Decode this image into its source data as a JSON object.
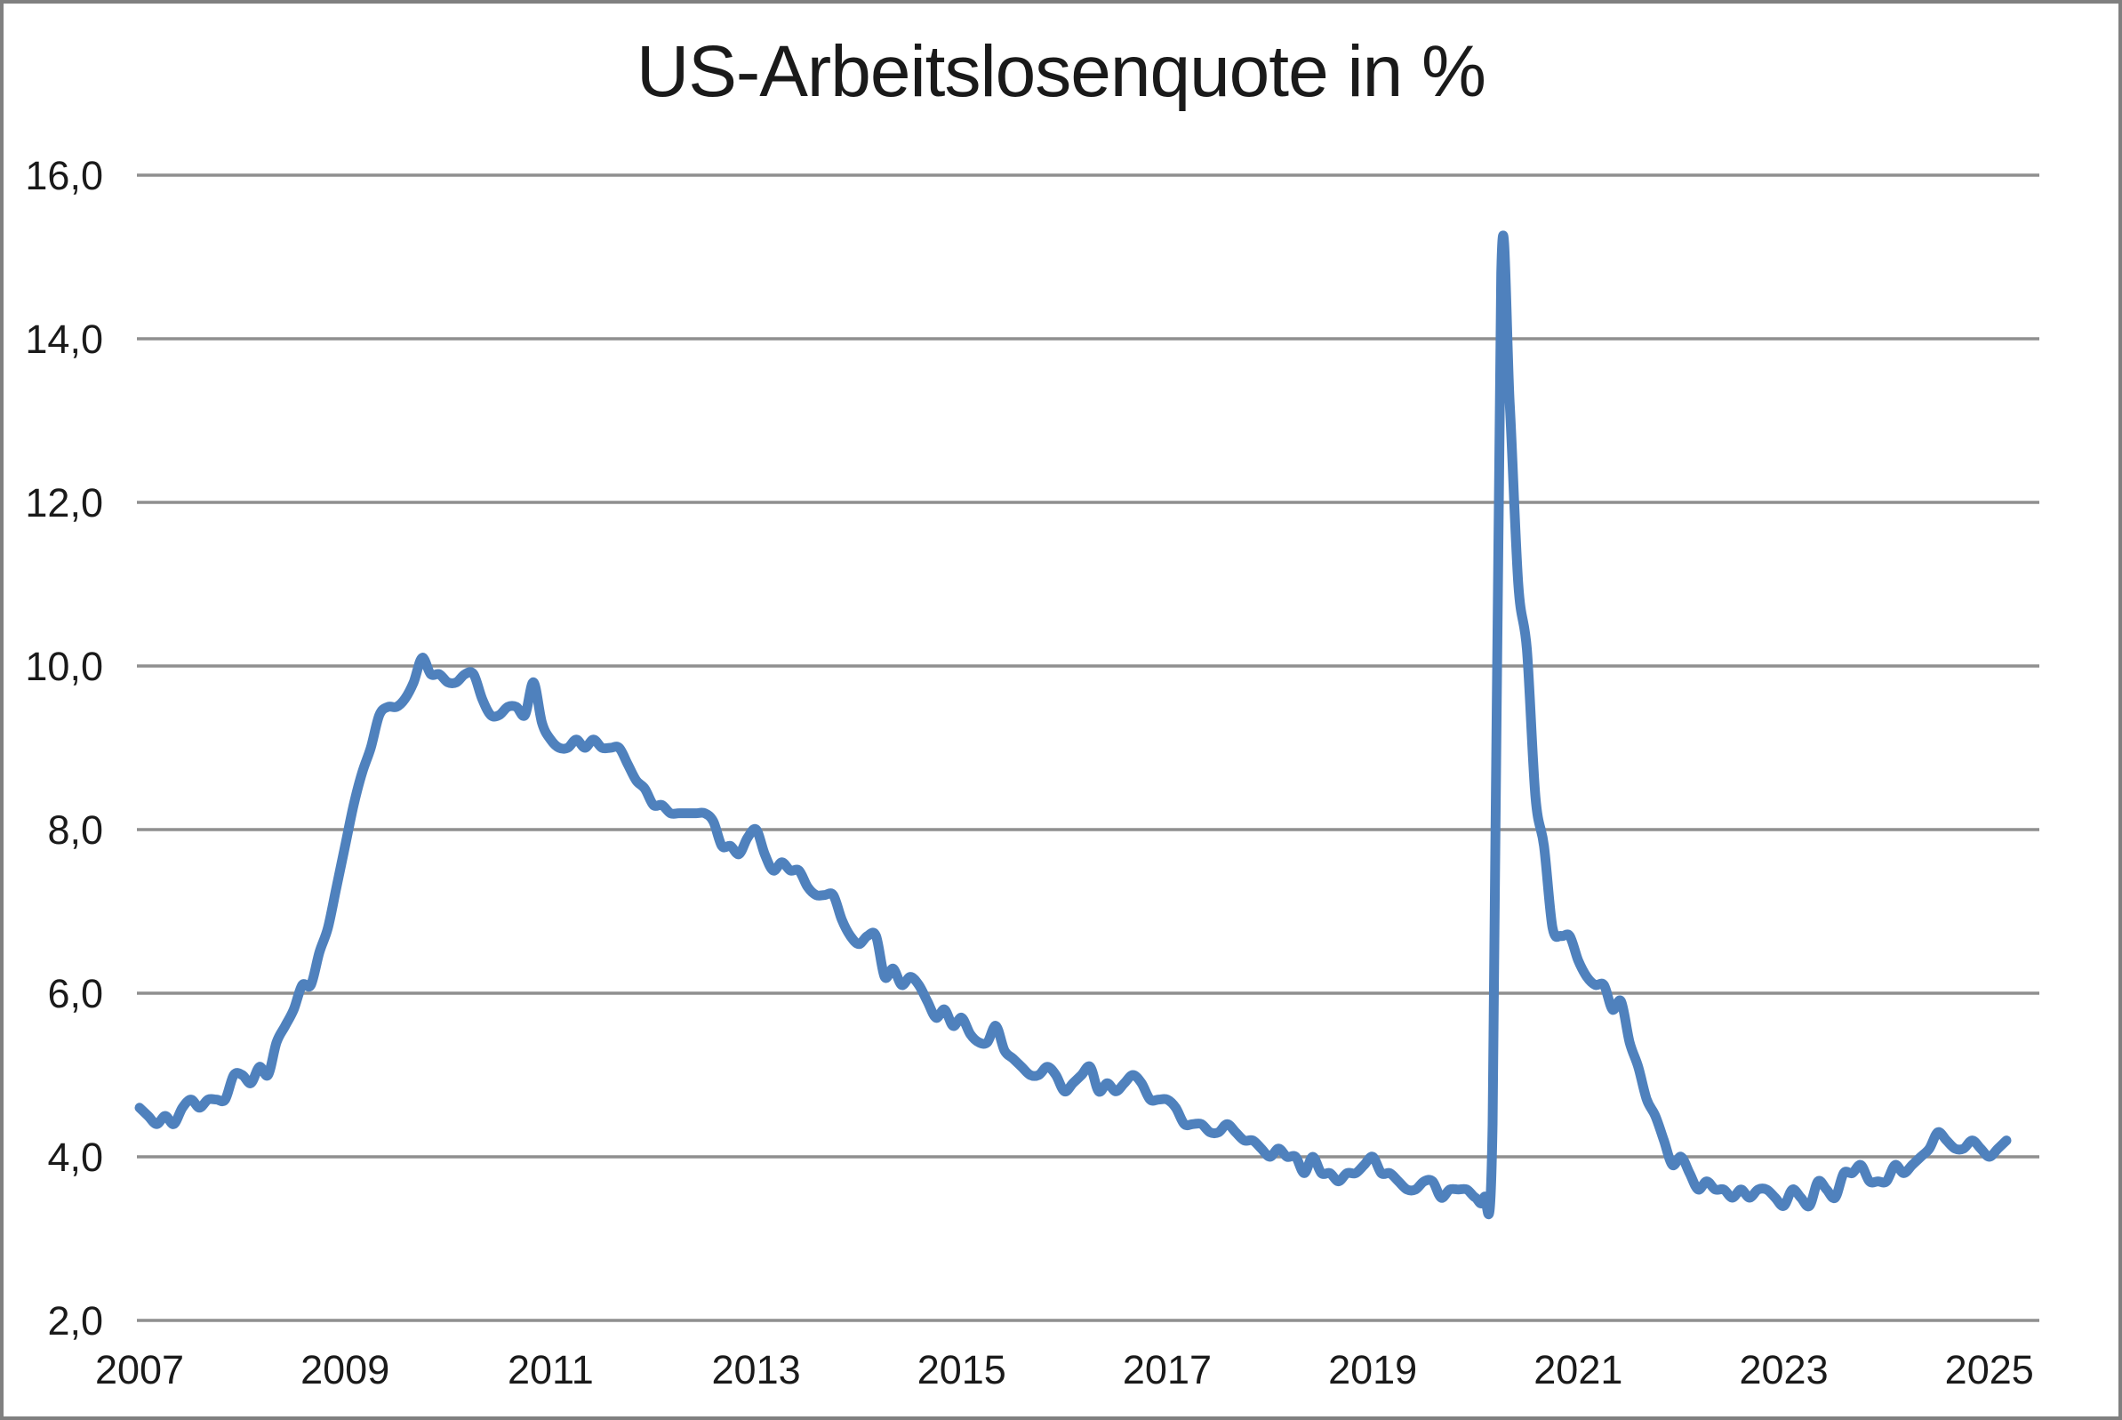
{
  "page": {
    "background_color": "#ffffff",
    "frame_color": "#808080"
  },
  "chart_data": {
    "type": "line",
    "title": "US-Arbeitslosenquote in %",
    "unit": "%",
    "frequency": "monthly",
    "x_start": "2007-01",
    "x_end": "2025-03",
    "x_tick_years": [
      2007,
      2009,
      2011,
      2013,
      2015,
      2017,
      2019,
      2021,
      2023,
      2025
    ],
    "x_tick_labels": [
      "2007",
      "2009",
      "2011",
      "2013",
      "2015",
      "2017",
      "2019",
      "2021",
      "2023",
      "2025"
    ],
    "y_ticks": [
      2,
      4,
      6,
      8,
      10,
      12,
      14,
      16
    ],
    "y_tick_labels": [
      "2,0",
      "4,0",
      "6,0",
      "8,0",
      "10,0",
      "12,0",
      "14,0",
      "16,0"
    ],
    "ylim": [
      2,
      16
    ],
    "grid": "horizontal",
    "legend": "none",
    "line_color": "#4f81bd",
    "gridline_color": "#8f8f8f",
    "axis_text_color": "#1a1a1a",
    "series": [
      {
        "name": "US-Arbeitslosenquote in %",
        "values": [
          4.6,
          4.5,
          4.4,
          4.5,
          4.4,
          4.6,
          4.7,
          4.6,
          4.7,
          4.7,
          4.7,
          5.0,
          5.0,
          4.9,
          5.1,
          5.0,
          5.4,
          5.6,
          5.8,
          6.1,
          6.1,
          6.5,
          6.8,
          7.3,
          7.8,
          8.3,
          8.7,
          9.0,
          9.4,
          9.5,
          9.5,
          9.6,
          9.8,
          10.1,
          9.9,
          9.9,
          9.8,
          9.8,
          9.9,
          9.9,
          9.6,
          9.4,
          9.4,
          9.5,
          9.5,
          9.4,
          9.8,
          9.3,
          9.1,
          9.0,
          9.0,
          9.1,
          9.0,
          9.1,
          9.0,
          9.0,
          9.0,
          8.8,
          8.6,
          8.5,
          8.3,
          8.3,
          8.2,
          8.2,
          8.2,
          8.2,
          8.2,
          8.1,
          7.8,
          7.8,
          7.7,
          7.9,
          8.0,
          7.7,
          7.5,
          7.6,
          7.5,
          7.5,
          7.3,
          7.2,
          7.2,
          7.2,
          6.9,
          6.7,
          6.6,
          6.7,
          6.7,
          6.2,
          6.3,
          6.1,
          6.2,
          6.1,
          5.9,
          5.7,
          5.8,
          5.6,
          5.7,
          5.5,
          5.4,
          5.4,
          5.6,
          5.3,
          5.2,
          5.1,
          5.0,
          5.0,
          5.1,
          5.0,
          4.8,
          4.9,
          5.0,
          5.1,
          4.8,
          4.9,
          4.8,
          4.9,
          5.0,
          4.9,
          4.7,
          4.7,
          4.7,
          4.6,
          4.4,
          4.4,
          4.4,
          4.3,
          4.3,
          4.4,
          4.3,
          4.2,
          4.2,
          4.1,
          4.0,
          4.1,
          4.0,
          4.0,
          3.8,
          4.0,
          3.8,
          3.8,
          3.7,
          3.8,
          3.8,
          3.9,
          4.0,
          3.8,
          3.8,
          3.7,
          3.6,
          3.6,
          3.7,
          3.7,
          3.5,
          3.6,
          3.6,
          3.6,
          3.5,
          3.5,
          4.4,
          14.8,
          13.2,
          11.0,
          10.2,
          8.4,
          7.8,
          6.8,
          6.7,
          6.7,
          6.4,
          6.2,
          6.1,
          6.1,
          5.8,
          5.9,
          5.4,
          5.1,
          4.7,
          4.5,
          4.2,
          3.9,
          4.0,
          3.8,
          3.6,
          3.7,
          3.6,
          3.6,
          3.5,
          3.6,
          3.5,
          3.6,
          3.6,
          3.5,
          3.4,
          3.6,
          3.5,
          3.4,
          3.7,
          3.6,
          3.5,
          3.8,
          3.8,
          3.9,
          3.7,
          3.7,
          3.7,
          3.9,
          3.8,
          3.9,
          4.0,
          4.1,
          4.3,
          4.2,
          4.1,
          4.1,
          4.2,
          4.1,
          4.0,
          4.1,
          4.2
        ]
      }
    ]
  }
}
